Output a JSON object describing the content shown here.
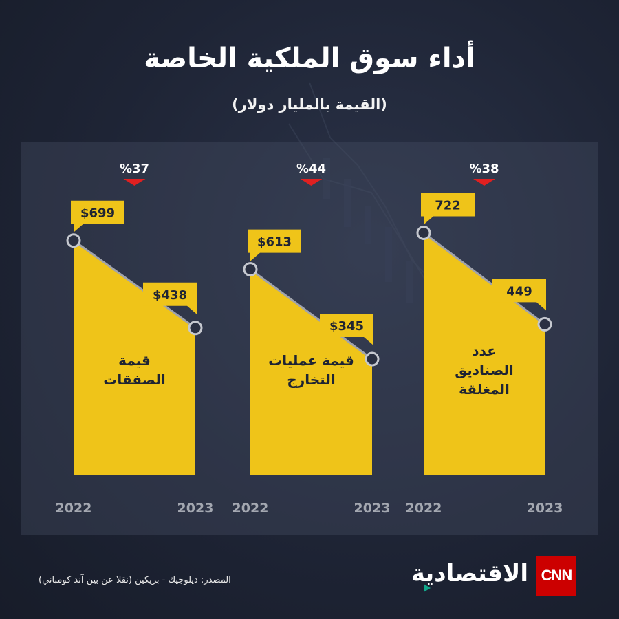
{
  "title": "أداء سوق الملكية الخاصة",
  "subtitle": "(القيمة بالمليار دولار)",
  "source": "المصدر: ديلوجيك - بريكين (نقلا عن بين آند كومباني)",
  "brand": {
    "cnn": "CNN",
    "arabic": "الاقتصادية"
  },
  "colors": {
    "fill": "#efc419",
    "line": "#a0a3ab",
    "down_marker": "#e02020",
    "background": "#1e2435"
  },
  "chart_data": [
    {
      "type": "area",
      "title": "قيمة الصفقات",
      "x": [
        "2022",
        "2023"
      ],
      "values": [
        699,
        438
      ],
      "value_labels": [
        "$699",
        "$438"
      ],
      "change_label": "%37",
      "change_direction": "down"
    },
    {
      "type": "area",
      "title": "قيمة عمليات التخارج",
      "x": [
        "2022",
        "2023"
      ],
      "values": [
        613,
        345
      ],
      "value_labels": [
        "$613",
        "$345"
      ],
      "change_label": "%44",
      "change_direction": "down"
    },
    {
      "type": "area",
      "title": "عدد الصناديق المغلقة",
      "x": [
        "2022",
        "2023"
      ],
      "values": [
        722,
        449
      ],
      "value_labels": [
        "722",
        "449"
      ],
      "change_label": "%38",
      "change_direction": "down"
    }
  ]
}
